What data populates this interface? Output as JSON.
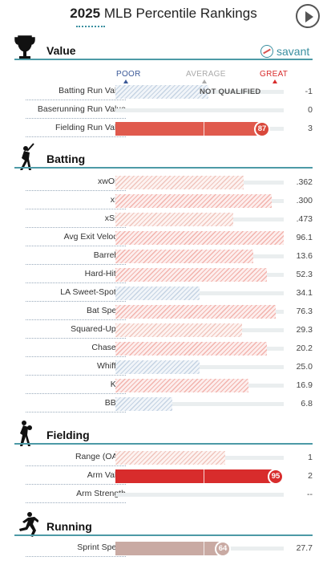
{
  "header": {
    "year": "2025",
    "title": "MLB Percentile Rankings"
  },
  "brand": "savant",
  "scale": {
    "poor": "POOR",
    "average": "AVERAGE",
    "great": "GREAT"
  },
  "sections": [
    {
      "key": "value",
      "title": "Value",
      "icon": "trophy-icon",
      "rows": [
        {
          "label": "Batting Run Value",
          "value": "-1",
          "percentile": null,
          "status": "NOT QUALIFIED",
          "style": "hatch-blue",
          "bar_fraction": 0.55
        },
        {
          "label": "Baserunning Run Value",
          "value": "0",
          "percentile": null,
          "style": "none"
        },
        {
          "label": "Fielding Run Value",
          "value": "3",
          "percentile": 87,
          "style": "solid-red",
          "show_bubble": true
        }
      ]
    },
    {
      "key": "batting",
      "title": "Batting",
      "icon": "batter-icon",
      "rows": [
        {
          "label": "xwOBA",
          "value": ".362",
          "percentile": 76,
          "style": "hatch-lred"
        },
        {
          "label": "xBA",
          "value": ".300",
          "percentile": 93,
          "style": "hatch-red"
        },
        {
          "label": "xSLG",
          "value": ".473",
          "percentile": 70,
          "style": "hatch-lred"
        },
        {
          "label": "Avg Exit Velocity",
          "value": "96.1",
          "percentile": 100,
          "style": "hatch-red"
        },
        {
          "label": "Barrel %",
          "value": "13.6",
          "percentile": 82,
          "style": "hatch-red"
        },
        {
          "label": "Hard-Hit %",
          "value": "52.3",
          "percentile": 90,
          "style": "hatch-red"
        },
        {
          "label": "LA Sweet-Spot %",
          "value": "34.1",
          "percentile": 50,
          "style": "hatch-blue"
        },
        {
          "label": "Bat Speed",
          "value": "76.3",
          "percentile": 95,
          "style": "hatch-red"
        },
        {
          "label": "Squared-Up %",
          "value": "29.3",
          "percentile": 75,
          "style": "hatch-lred"
        },
        {
          "label": "Chase %",
          "value": "20.2",
          "percentile": 90,
          "style": "hatch-red"
        },
        {
          "label": "Whiff %",
          "value": "25.0",
          "percentile": 50,
          "style": "hatch-blue"
        },
        {
          "label": "K %",
          "value": "16.9",
          "percentile": 79,
          "style": "hatch-red"
        },
        {
          "label": "BB %",
          "value": "6.8",
          "percentile": 34,
          "style": "hatch-blue"
        }
      ]
    },
    {
      "key": "fielding",
      "title": "Fielding",
      "icon": "fielder-icon",
      "rows": [
        {
          "label": "Range (OAA)",
          "value": "1",
          "percentile": 65,
          "style": "hatch-lred"
        },
        {
          "label": "Arm Value",
          "value": "2",
          "percentile": 95,
          "style": "solid-red2",
          "show_bubble": true
        },
        {
          "label": "Arm Strength",
          "value": "--",
          "percentile": null,
          "style": "none"
        }
      ]
    },
    {
      "key": "running",
      "title": "Running",
      "icon": "runner-icon",
      "rows": [
        {
          "label": "Sprint Speed",
          "value": "27.7",
          "percentile": 64,
          "style": "solid-tan",
          "show_bubble": true
        }
      ]
    }
  ],
  "colors": {
    "accent": "#4d9aa6",
    "poor": "#3b5998",
    "average": "#aaaaaa",
    "great": "#d82c2c"
  }
}
